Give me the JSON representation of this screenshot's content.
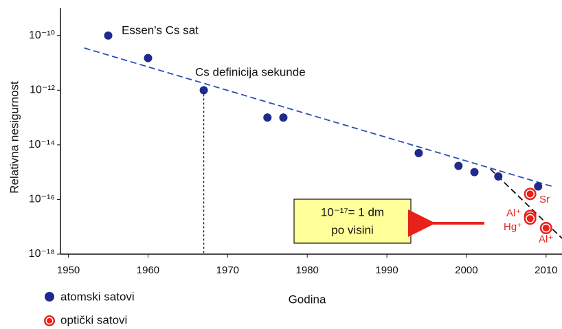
{
  "chart_data": {
    "type": "scatter",
    "x_label": "Godina",
    "y_label": "Relativna nesigurnost",
    "log_y": true,
    "xlim": [
      1949,
      2012
    ],
    "ylim": [
      1e-18,
      1e-09
    ],
    "xticks": [
      1950,
      1960,
      1970,
      1980,
      1990,
      2000,
      2010
    ],
    "yticks": [
      {
        "value": 1e-10,
        "label": "10⁻¹⁰"
      },
      {
        "value": 1e-12,
        "label": "10⁻¹²"
      },
      {
        "value": 1e-14,
        "label": "10⁻¹⁴"
      },
      {
        "value": 1e-16,
        "label": "10⁻¹⁶"
      },
      {
        "value": 1e-18,
        "label": "10⁻¹⁸"
      }
    ],
    "series": [
      {
        "name": "atomski satovi",
        "color": "#1f2a8c",
        "x": [
          1955,
          1960,
          1967,
          1975,
          1977,
          1994,
          1999,
          2001,
          2004,
          2009
        ],
        "values": [
          1e-10,
          1.5e-11,
          1e-12,
          1e-13,
          1e-13,
          5e-15,
          1.7e-15,
          1e-15,
          7e-16,
          3e-16
        ]
      },
      {
        "name": "optički satovi",
        "color": "#e8221a",
        "x": [
          2008,
          2008,
          2008,
          2010
        ],
        "values": [
          1.6e-16,
          2.5e-17,
          2e-17,
          9e-18
        ]
      }
    ],
    "trend_lines": [
      {
        "color": "#2a4fb5",
        "x": [
          1952,
          2010.8
        ],
        "values": [
          3.5e-11,
          3e-16
        ]
      },
      {
        "color": "#111111",
        "x": [
          2003,
          2012
        ],
        "values": [
          1.3e-15,
          3.8e-18
        ]
      }
    ],
    "annotations": [
      {
        "text": "Essen's Cs sat"
      },
      {
        "text": "Cs definicija sekunde"
      },
      {
        "text": "Sr"
      },
      {
        "text": "Al⁺"
      },
      {
        "text": "Hg⁺"
      },
      {
        "text": "Al⁺"
      }
    ],
    "note_box": [
      "10⁻¹⁷= 1 dm",
      "po visini"
    ]
  }
}
